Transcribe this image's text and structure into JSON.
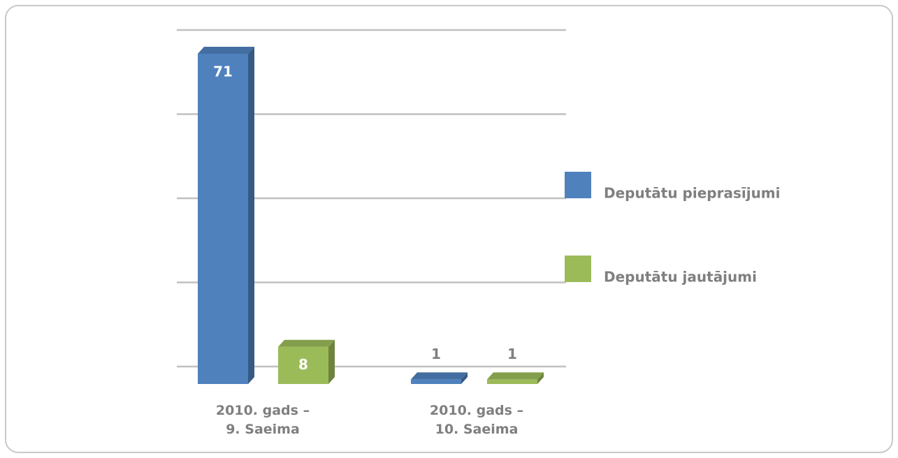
{
  "chart_data": {
    "type": "bar3d",
    "categories": [
      "2010. gads – 9. Saeima",
      "2010. gads – 10. Saeima"
    ],
    "series": [
      {
        "name": "Deputātu pieprasījumi",
        "color": "#4f81bd",
        "values": [
          71,
          1
        ]
      },
      {
        "name": "Deputātu jautājumi",
        "color": "#9bbb59",
        "values": [
          8,
          1
        ]
      }
    ],
    "ylim": [
      0,
      80
    ],
    "yticks": [
      0,
      20,
      40,
      60,
      80
    ],
    "grid": true,
    "legend": "right"
  }
}
